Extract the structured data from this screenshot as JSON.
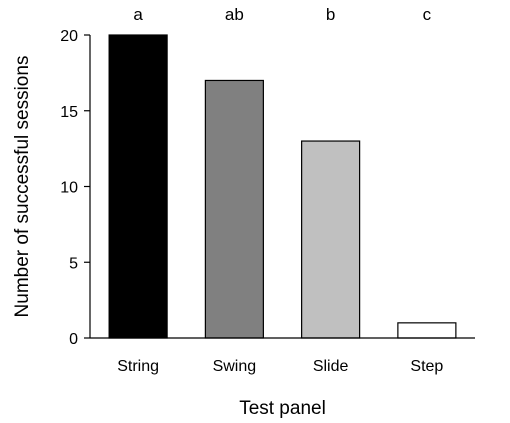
{
  "chart_data": {
    "type": "bar",
    "categories": [
      "String",
      "Swing",
      "Slide",
      "Step"
    ],
    "values": [
      20,
      17,
      13,
      1
    ],
    "significance_labels": [
      "a",
      "ab",
      "b",
      "c"
    ],
    "bar_colors": [
      "#000000",
      "#808080",
      "#c0c0c0",
      "#ffffff"
    ],
    "xlabel": "Test panel",
    "ylabel": "Number of successful sessions",
    "ylim": [
      0,
      20
    ],
    "yticks": [
      0,
      5,
      10,
      15,
      20
    ],
    "grid": false
  }
}
